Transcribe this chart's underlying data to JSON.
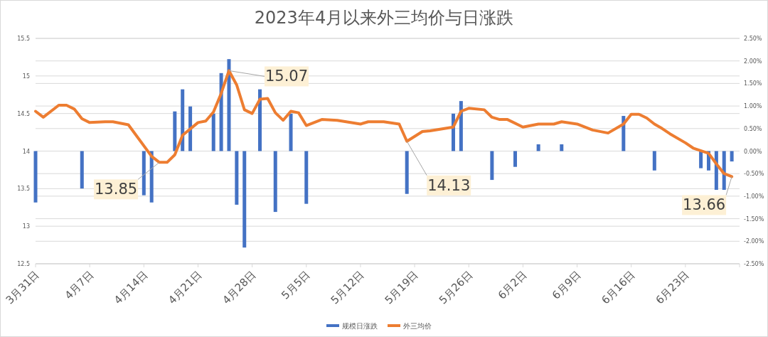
{
  "chart_data": {
    "type": "bar",
    "title": "2023年4月以来外三均价与日涨跌",
    "xlim": [
      "2023-03-31",
      "2023-06-30"
    ],
    "xticks": [
      {
        "value": "2023-03-31",
        "label": "3月31日"
      },
      {
        "value": "2023-04-07",
        "label": "4月7日"
      },
      {
        "value": "2023-04-14",
        "label": "4月14日"
      },
      {
        "value": "2023-04-21",
        "label": "4月21日"
      },
      {
        "value": "2023-04-28",
        "label": "4月28日"
      },
      {
        "value": "2023-05-05",
        "label": "5月5日"
      },
      {
        "value": "2023-05-12",
        "label": "5月12日"
      },
      {
        "value": "2023-05-19",
        "label": "5月19日"
      },
      {
        "value": "2023-05-26",
        "label": "5月26日"
      },
      {
        "value": "2023-06-02",
        "label": "6月2日"
      },
      {
        "value": "2023-06-09",
        "label": "6月9日"
      },
      {
        "value": "2023-06-16",
        "label": "6月16日"
      },
      {
        "value": "2023-06-23",
        "label": "6月23日"
      },
      {
        "value": "2023-06-30",
        "label": null
      }
    ],
    "ylim": [
      12.5,
      15.5
    ],
    "yticks": [
      12.5,
      13,
      13.5,
      14,
      14.5,
      15,
      15.5
    ],
    "y2lim": [
      -2.5,
      2.5
    ],
    "y2ticks": [
      {
        "value": -2.5,
        "label": "-2.50%"
      },
      {
        "value": -2,
        "label": "-2.00%"
      },
      {
        "value": -1.5,
        "label": "-1.50%"
      },
      {
        "value": -1,
        "label": "-1.00%"
      },
      {
        "value": -0.5,
        "label": "-0.50%"
      },
      {
        "value": 0,
        "label": "0.00%"
      },
      {
        "value": 0.5,
        "label": "0.50%"
      },
      {
        "value": 1,
        "label": "1.00%"
      },
      {
        "value": 1.5,
        "label": "1.50%"
      },
      {
        "value": 2,
        "label": "2.00%"
      },
      {
        "value": 2.5,
        "label": "2.50%"
      }
    ],
    "grid": "y",
    "legend": "bottom",
    "series": [
      {
        "name": "规模日涨跌",
        "axis": "y2",
        "color": "#4472c4",
        "x": [
          "2023-03-31",
          "2023-04-06",
          "2023-04-14",
          "2023-04-15",
          "2023-04-18",
          "2023-04-19",
          "2023-04-20",
          "2023-04-23",
          "2023-04-24",
          "2023-04-25",
          "2023-04-26",
          "2023-04-27",
          "2023-04-29",
          "2023-05-01",
          "2023-05-03",
          "2023-05-05",
          "2023-05-18",
          "2023-05-24",
          "2023-05-25",
          "2023-05-29",
          "2023-06-01",
          "2023-06-04",
          "2023-06-07",
          "2023-06-15",
          "2023-06-19",
          "2023-06-25",
          "2023-06-26",
          "2023-06-27",
          "2023-06-28",
          "2023-06-29"
        ],
        "values": [
          -1.14,
          -0.83,
          -0.98,
          -1.14,
          0.88,
          1.37,
          0.99,
          0.83,
          1.73,
          2.04,
          -1.19,
          -2.14,
          1.37,
          -1.35,
          0.83,
          -1.17,
          -0.95,
          0.83,
          1.11,
          -0.64,
          -0.35,
          0.15,
          0.15,
          0.78,
          -0.43,
          -0.38,
          -0.43,
          -0.86,
          -0.86,
          -0.23
        ]
      },
      {
        "name": "外三均价",
        "type": "line",
        "color": "#ed7d31",
        "x": [
          "2023-03-31",
          "2023-04-01",
          "2023-04-03",
          "2023-04-04",
          "2023-04-05",
          "2023-04-06",
          "2023-04-07",
          "2023-04-09",
          "2023-04-10",
          "2023-04-12",
          "2023-04-15",
          "2023-04-16",
          "2023-04-17",
          "2023-04-18",
          "2023-04-19",
          "2023-04-21",
          "2023-04-22",
          "2023-04-23",
          "2023-04-24",
          "2023-04-25",
          "2023-04-26",
          "2023-04-27",
          "2023-04-28",
          "2023-04-29",
          "2023-04-30",
          "2023-05-01",
          "2023-05-02",
          "2023-05-03",
          "2023-05-04",
          "2023-05-05",
          "2023-05-07",
          "2023-05-09",
          "2023-05-12",
          "2023-05-13",
          "2023-05-15",
          "2023-05-17",
          "2023-05-18",
          "2023-05-20",
          "2023-05-21",
          "2023-05-24",
          "2023-05-25",
          "2023-05-26",
          "2023-05-28",
          "2023-05-29",
          "2023-05-30",
          "2023-05-31",
          "2023-06-02",
          "2023-06-04",
          "2023-06-06",
          "2023-06-07",
          "2023-06-09",
          "2023-06-11",
          "2023-06-13",
          "2023-06-15",
          "2023-06-16",
          "2023-06-17",
          "2023-06-18",
          "2023-06-19",
          "2023-06-20",
          "2023-06-21",
          "2023-06-23",
          "2023-06-24",
          "2023-06-26",
          "2023-06-27",
          "2023-06-28",
          "2023-06-29"
        ],
        "values": [
          14.53,
          14.45,
          14.61,
          14.61,
          14.56,
          14.43,
          14.38,
          14.39,
          14.39,
          14.35,
          13.93,
          13.85,
          13.85,
          13.95,
          14.21,
          14.38,
          14.4,
          14.52,
          14.77,
          15.07,
          14.88,
          14.55,
          14.5,
          14.69,
          14.7,
          14.51,
          14.41,
          14.53,
          14.51,
          14.34,
          14.42,
          14.41,
          14.36,
          14.39,
          14.39,
          14.36,
          14.13,
          14.26,
          14.27,
          14.32,
          14.53,
          14.57,
          14.55,
          14.45,
          14.42,
          14.42,
          14.32,
          14.36,
          14.36,
          14.39,
          14.36,
          14.28,
          14.24,
          14.36,
          14.49,
          14.49,
          14.44,
          14.36,
          14.3,
          14.23,
          14.11,
          14.04,
          13.97,
          13.83,
          13.7,
          13.66
        ]
      }
    ],
    "annotations": [
      {
        "text": "15.07",
        "x": "2023-04-25",
        "y": 15.07
      },
      {
        "text": "13.85",
        "x": "2023-04-16",
        "y": 13.85
      },
      {
        "text": "14.13",
        "x": "2023-05-18",
        "y": 14.13
      },
      {
        "text": "13.66",
        "x": "2023-06-29",
        "y": 13.66
      }
    ]
  }
}
